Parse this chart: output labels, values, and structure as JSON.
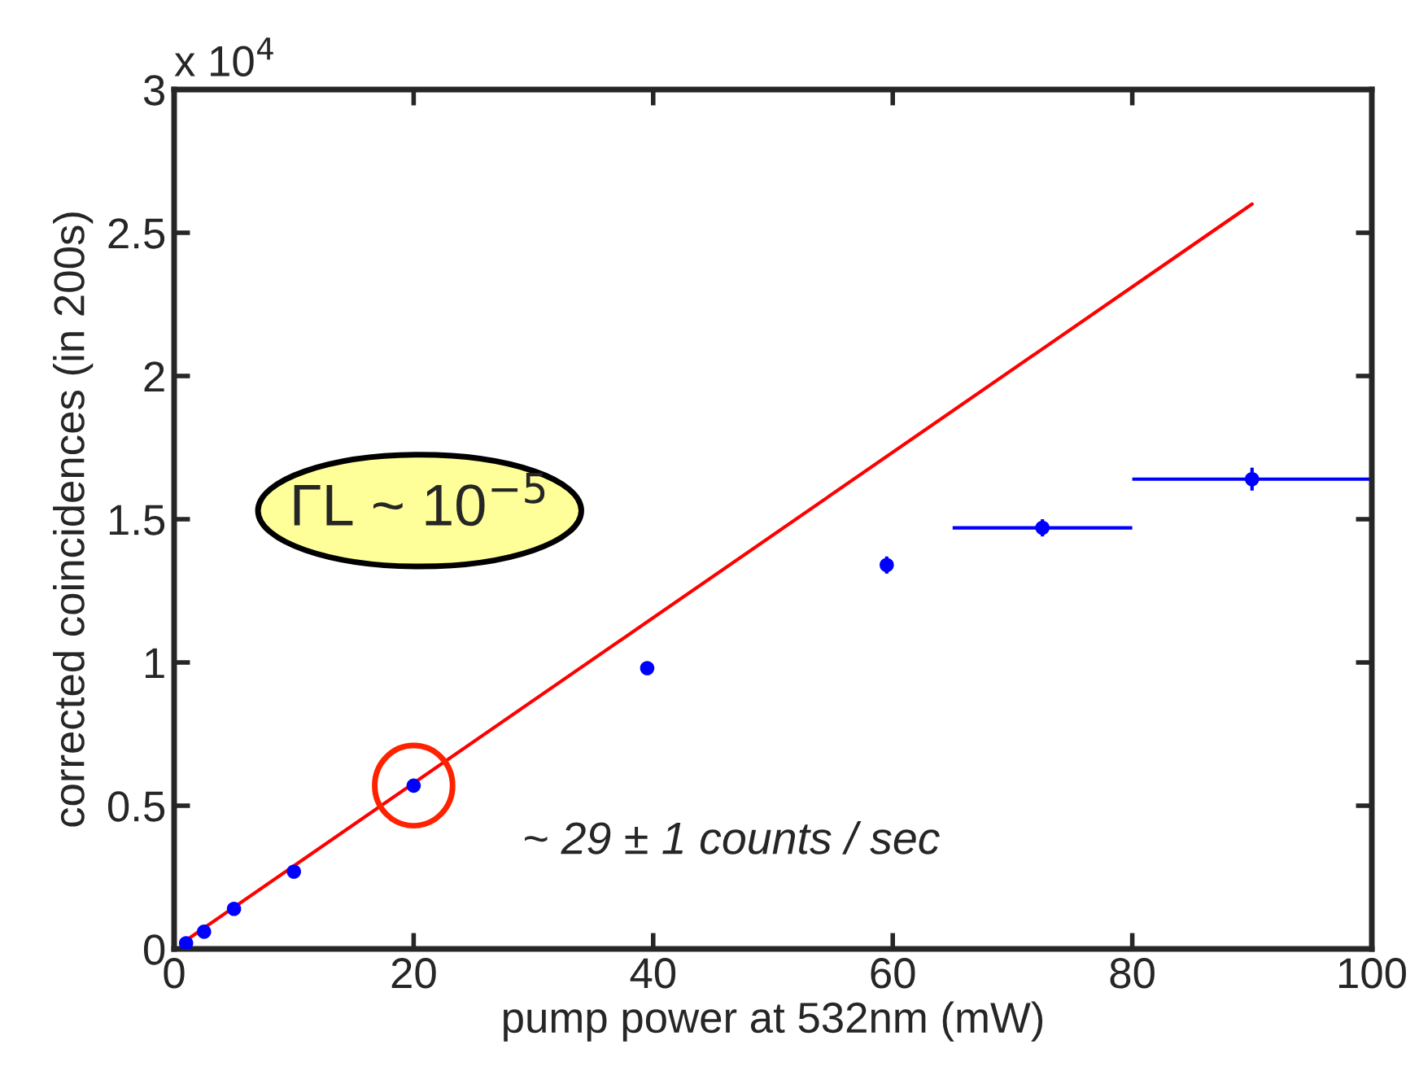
{
  "chart_data": {
    "type": "scatter",
    "xlabel": "pump power at 532nm (mW)",
    "ylabel": "corrected coincidences (in 200s)",
    "xlim": [
      0,
      100
    ],
    "xticks": [
      0,
      20,
      40,
      60,
      80,
      100
    ],
    "ylim": [
      0,
      3
    ],
    "yticks": [
      0,
      0.5,
      1,
      1.5,
      2,
      2.5,
      3
    ],
    "grid": false,
    "legend": false,
    "marker": "circle",
    "series": [
      {
        "color": "#0000ff",
        "x": [
          1,
          2.5,
          5,
          10,
          20,
          39.5,
          59.5,
          72.5,
          90
        ],
        "values": [
          0.02,
          0.06,
          0.14,
          0.27,
          0.57,
          0.98,
          1.34,
          1.47,
          1.64
        ],
        "errors": [
          null,
          null,
          null,
          null,
          null,
          null,
          0.03,
          0.03,
          0.04
        ],
        "xerrors": [
          null,
          null,
          null,
          null,
          null,
          null,
          null,
          [
            65,
            80
          ],
          [
            80,
            100
          ]
        ]
      },
      {
        "type": "line",
        "color": "#ff0000",
        "x": [
          1,
          90
        ],
        "values": [
          0.03,
          2.6
        ],
        "marker": "none"
      }
    ],
    "annotations": [
      "x 10$^{4}$",
      "ΓL ~ 10$^{−5}$",
      {
        "text": "~ 29 ± 1 counts / sec",
        "x": 20,
        "y": 0.57
      }
    ]
  }
}
